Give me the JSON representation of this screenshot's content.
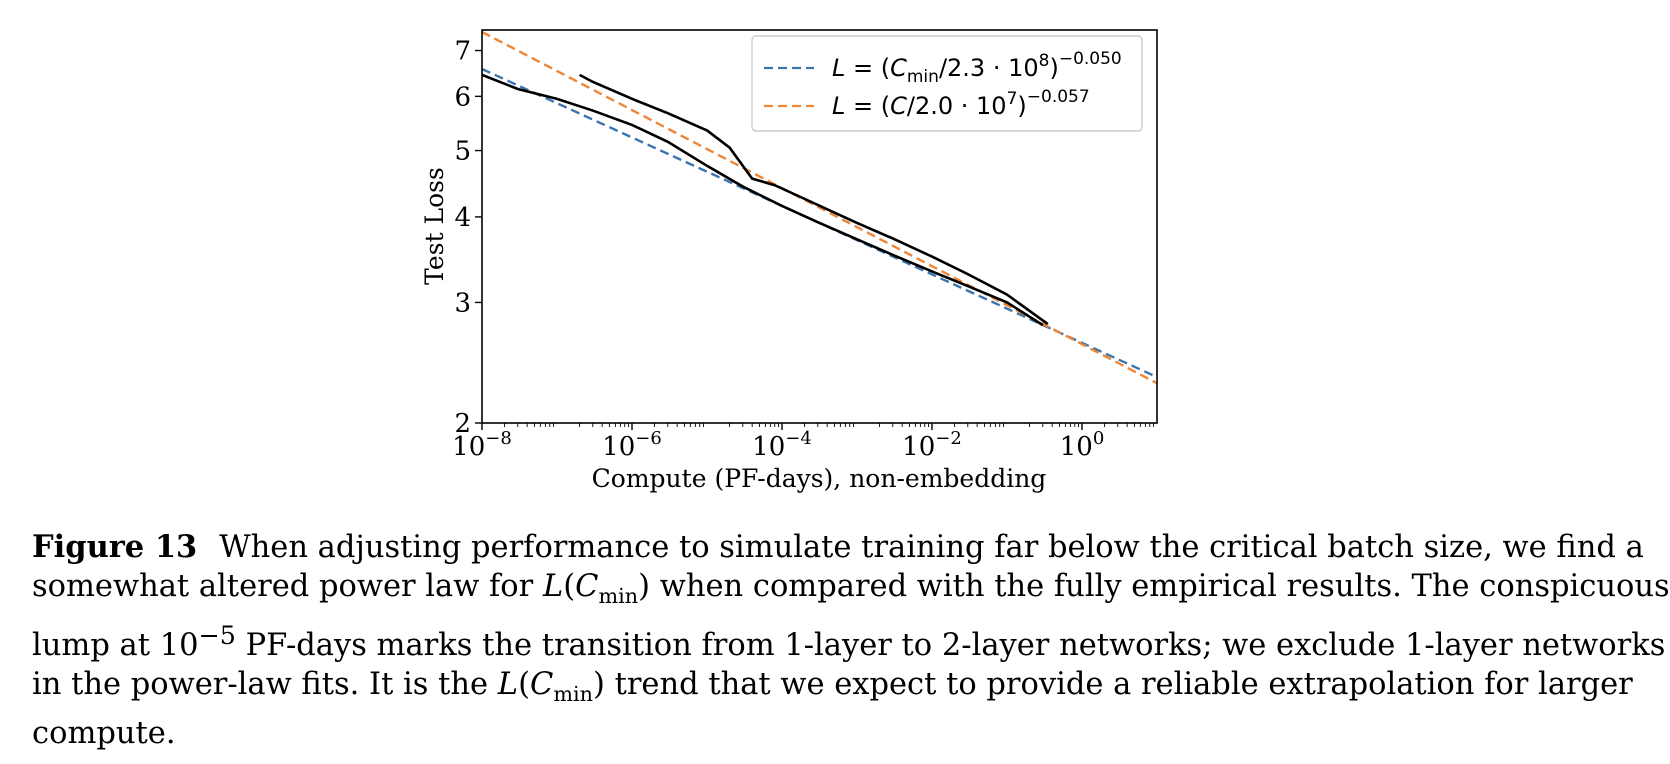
{
  "chart_data": {
    "type": "line",
    "xscale": "log",
    "yscale": "log",
    "xlim": [
      1e-08,
      10
    ],
    "ylim": [
      2,
      7.5
    ],
    "xlabel": "Compute (PF-days), non-embedding",
    "ylabel": "Test Loss",
    "x_tick_values": [
      1e-08,
      1e-06,
      0.0001,
      0.01,
      1
    ],
    "x_tick_labels": [
      {
        "base": "10",
        "exp": "−8"
      },
      {
        "base": "10",
        "exp": "−6"
      },
      {
        "base": "10",
        "exp": "−4"
      },
      {
        "base": "10",
        "exp": "−2"
      },
      {
        "base": "10",
        "exp": "0"
      }
    ],
    "y_tick_values": [
      2,
      3,
      4,
      5,
      6,
      7
    ],
    "y_tick_labels": [
      "2",
      "3",
      "4",
      "5",
      "6",
      "7"
    ],
    "grid": false,
    "legend_position": "top-right",
    "series": [
      {
        "name": "L = (C_min/2.3·10^8)^−0.050",
        "style": "dashed",
        "color": "#3b75af",
        "formula": {
          "scale": 230000000.0,
          "exponent": -0.05
        },
        "x": [
          1e-08,
          1e-06,
          0.0001,
          0.01,
          1,
          10
        ],
        "y": [
          6.38,
          5.15,
          4.1,
          3.27,
          2.6,
          2.33
        ]
      },
      {
        "name": "L = (C/2.0·10^7)^−0.057",
        "style": "dashed",
        "color": "#ef8636",
        "formula": {
          "scale": 20000000.0,
          "exponent": -0.057
        },
        "x": [
          1e-08,
          1e-06,
          0.0001,
          0.01,
          1,
          10
        ],
        "y": [
          7.35,
          5.72,
          4.44,
          3.44,
          2.62,
          2.3
        ]
      },
      {
        "style": "solid",
        "color": "#000000",
        "x": [
          1e-08,
          3e-08,
          1e-07,
          3e-07,
          1e-06,
          3e-06,
          1e-05,
          3e-05,
          0.0001,
          0.0003,
          0.001,
          0.003,
          0.01,
          0.03,
          0.1,
          0.3
        ],
        "y": [
          6.45,
          6.15,
          5.95,
          5.72,
          5.45,
          5.15,
          4.75,
          4.43,
          4.15,
          3.93,
          3.71,
          3.52,
          3.33,
          3.17,
          3.0,
          2.78
        ]
      },
      {
        "style": "solid",
        "color": "#000000",
        "x": [
          2e-07,
          3e-07,
          1e-06,
          3e-06,
          1e-05,
          2e-05,
          4e-05,
          8e-05,
          0.0002,
          0.001,
          0.003,
          0.01,
          0.03,
          0.1,
          0.35
        ],
        "y": [
          6.45,
          6.3,
          5.95,
          5.67,
          5.35,
          5.05,
          4.55,
          4.45,
          4.25,
          3.92,
          3.72,
          3.5,
          3.3,
          3.08,
          2.79
        ]
      }
    ]
  },
  "legend": {
    "entries": [
      {
        "color": "#3b75af",
        "lhs": "L",
        "eq": " = (",
        "var": "C",
        "sub": "min",
        "mid": "/2.3 · 10",
        "pow": "8",
        "close": ")",
        "exp": "−0.050"
      },
      {
        "color": "#ef8636",
        "lhs": "L",
        "eq": " = (",
        "var": "C",
        "sub": "",
        "mid": "/2.0 · 10",
        "pow": "7",
        "close": ")",
        "exp": "−0.057"
      }
    ]
  },
  "caption": {
    "label": "Figure 13",
    "line1": "When adjusting performance to simulate training far below the critical batch size, we find a",
    "line2_a": "somewhat altered power law for ",
    "line2_b": " when compared with the fully empirical results. The conspicuous",
    "line3_a": "lump at ",
    "line3_pow_base": "10",
    "line3_pow_exp": "−5",
    "line3_b": " PF-days marks the transition from 1-layer to 2-layer networks; we exclude 1-layer networks",
    "line4_a": "in the power-law fits.  It is the ",
    "line4_b": " trend that we expect to provide a reliable extrapolation for larger",
    "line5": "compute.",
    "math_L": "L",
    "math_C": "C",
    "math_sub": "min"
  }
}
